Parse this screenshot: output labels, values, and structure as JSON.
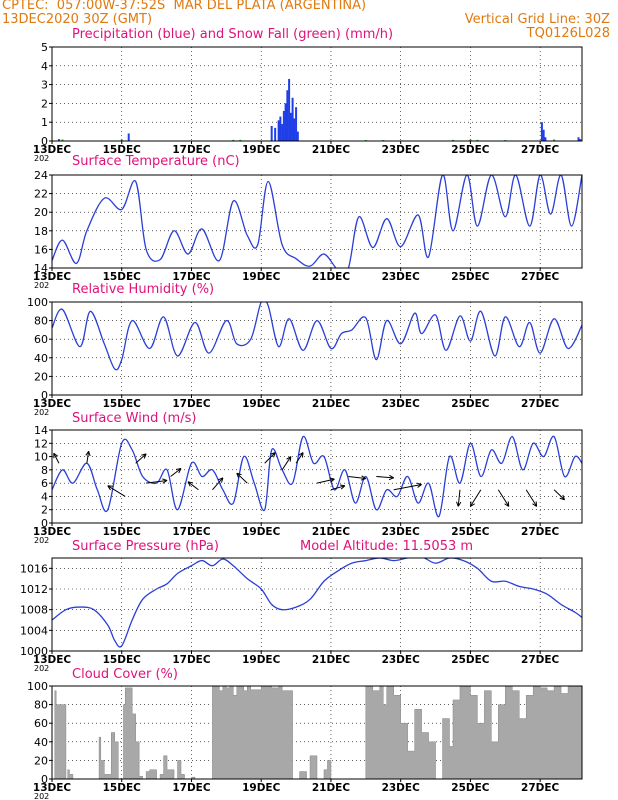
{
  "header": {
    "line1_left": "CPTEC:",
    "location": "057:00W-37:52S",
    "station": "MAR DEL PLATA (ARGENTINA)",
    "date": "13DEC2020 30Z (GMT)",
    "grid_line": "Vertical Grid Line: 30Z",
    "code": "TQ0126L028",
    "model_altitude": "Model Altitude: 11.5053 m",
    "year_stub": "202"
  },
  "colors": {
    "header": "#e07a10",
    "title": "#e0127a",
    "line": "#2a3fd8",
    "precip": "#1f3ee8",
    "snow": "#18b018",
    "cloud": "#a8a8a8"
  },
  "x_ticks": [
    "13DEC",
    "15DEC",
    "17DEC",
    "19DEC",
    "21DEC",
    "23DEC",
    "25DEC",
    "27DEC"
  ],
  "chart_data": [
    {
      "id": "precip",
      "type": "bar",
      "title": "Precipitation (blue) and Snow Fall (green) (mm/h)",
      "ylim": [
        0,
        5
      ],
      "yticks": [
        0,
        1,
        2,
        3,
        4,
        5
      ],
      "series": [
        {
          "name": "Precipitation",
          "color": "#1f3ee8",
          "x": [
            0.2,
            2.2,
            6.3,
            6.4,
            6.5,
            6.55,
            6.6,
            6.65,
            6.7,
            6.75,
            6.8,
            6.85,
            6.9,
            6.95,
            7.0,
            7.05,
            14.05,
            14.1,
            14.15,
            15.1,
            15.15
          ],
          "values": [
            0.1,
            0.4,
            0.8,
            0.7,
            1.1,
            1.3,
            0.9,
            1.6,
            2.0,
            2.7,
            3.3,
            1.5,
            2.3,
            1.2,
            1.8,
            0.5,
            1.0,
            0.6,
            0.2,
            0.2,
            0.1
          ]
        },
        {
          "name": "Snow Fall",
          "color": "#18b018",
          "x": [
            0.3,
            2.0,
            5.2,
            5.4,
            9.0,
            9.5,
            11.5,
            12.0,
            12.2,
            13.0,
            14.4
          ],
          "values": [
            0.08,
            0.08,
            0.06,
            0.06,
            0.05,
            0.05,
            0.06,
            0.08,
            0.06,
            0.05,
            0.08
          ]
        }
      ]
    },
    {
      "id": "temp",
      "type": "line",
      "title": "Surface Temperature (nC)",
      "ylim": [
        14,
        24
      ],
      "yticks": [
        14,
        16,
        18,
        20,
        22,
        24
      ],
      "x": [
        0,
        0.3,
        0.7,
        1.0,
        1.5,
        2.0,
        2.4,
        2.7,
        3.1,
        3.5,
        3.9,
        4.3,
        4.8,
        5.2,
        5.6,
        5.9,
        6.2,
        6.6,
        7.0,
        7.4,
        7.8,
        8.2,
        8.5,
        8.8,
        9.2,
        9.6,
        10.0,
        10.5,
        10.8,
        11.2,
        11.5,
        11.9,
        12.2,
        12.6,
        13.0,
        13.3,
        13.7,
        14.0,
        14.3,
        14.6,
        14.9,
        15.2
      ],
      "values": [
        14.8,
        17.0,
        14.5,
        18.0,
        21.5,
        20.3,
        23.3,
        16.0,
        14.9,
        18.0,
        15.5,
        18.2,
        14.8,
        21.2,
        17.5,
        16.5,
        23.3,
        16.5,
        15.0,
        14.2,
        15.5,
        13.8,
        14.0,
        19.5,
        16.2,
        19.3,
        16.3,
        19.7,
        15.2,
        24.0,
        18.0,
        24.0,
        18.5,
        24.0,
        19.5,
        24.0,
        18.5,
        24.0,
        19.8,
        24.0,
        18.5,
        24.0
      ],
      "clip": true
    },
    {
      "id": "rh",
      "type": "line",
      "title": "Relative Humidity (%)",
      "ylim": [
        0,
        100
      ],
      "yticks": [
        0,
        20,
        40,
        60,
        80,
        100
      ],
      "x": [
        0,
        0.3,
        0.8,
        1.1,
        1.5,
        1.8,
        2.0,
        2.3,
        2.8,
        3.2,
        3.6,
        4.1,
        4.5,
        5.0,
        5.3,
        5.7,
        6.0,
        6.2,
        6.5,
        6.8,
        7.2,
        7.6,
        8.0,
        8.3,
        8.6,
        9.0,
        9.3,
        9.6,
        10.0,
        10.4,
        10.6,
        11.0,
        11.3,
        11.7,
        12.0,
        12.3,
        12.7,
        13.0,
        13.4,
        13.7,
        14.0,
        14.4,
        14.8,
        15.2
      ],
      "values": [
        72,
        92,
        52,
        90,
        55,
        28,
        38,
        80,
        50,
        84,
        42,
        78,
        45,
        80,
        55,
        60,
        100,
        96,
        52,
        82,
        48,
        80,
        50,
        66,
        70,
        83,
        38,
        80,
        55,
        88,
        66,
        86,
        48,
        85,
        58,
        90,
        42,
        84,
        52,
        78,
        45,
        82,
        50,
        75
      ],
      "clip": true
    },
    {
      "id": "wind",
      "type": "line",
      "title": "Surface Wind (m/s)",
      "ylim": [
        0,
        14
      ],
      "yticks": [
        0,
        2,
        4,
        6,
        8,
        10,
        12,
        14
      ],
      "x": [
        0,
        0.3,
        0.6,
        1.0,
        1.3,
        1.6,
        2.0,
        2.3,
        2.6,
        3.0,
        3.3,
        3.6,
        4.0,
        4.3,
        4.6,
        4.9,
        5.2,
        5.5,
        5.8,
        6.1,
        6.3,
        6.6,
        6.9,
        7.2,
        7.5,
        7.8,
        8.1,
        8.4,
        8.7,
        9.0,
        9.3,
        9.6,
        9.9,
        10.2,
        10.5,
        10.8,
        11.1,
        11.4,
        11.7,
        12.0,
        12.3,
        12.6,
        12.9,
        13.2,
        13.5,
        13.8,
        14.1,
        14.4,
        14.7,
        15.0,
        15.2
      ],
      "values": [
        5,
        8,
        6,
        9,
        5,
        2,
        12,
        11,
        7,
        6,
        8,
        2,
        9,
        7,
        8,
        5,
        3,
        10,
        6,
        2,
        11,
        8,
        6,
        13,
        9,
        10,
        5,
        8,
        3,
        7,
        2,
        5,
        4,
        7,
        3,
        6,
        1,
        10,
        6,
        12,
        7,
        11,
        9,
        13,
        8,
        12,
        10,
        13,
        7,
        10,
        9
      ],
      "arrows": [
        [
          0.2,
          9,
          -0.15,
          1.5
        ],
        [
          1.0,
          9,
          0.05,
          1.8
        ],
        [
          2.1,
          4,
          -0.5,
          1.6
        ],
        [
          2.4,
          9,
          0.3,
          1.4
        ],
        [
          2.7,
          6,
          0.6,
          0.4
        ],
        [
          3.4,
          7,
          0.3,
          1.2
        ],
        [
          4.2,
          5,
          -0.3,
          1.2
        ],
        [
          4.6,
          5,
          0.3,
          1.8
        ],
        [
          5.6,
          6,
          -0.3,
          1.5
        ],
        [
          6.1,
          9,
          0.3,
          1.6
        ],
        [
          6.6,
          8,
          0.25,
          2.0
        ],
        [
          7.0,
          9,
          0.2,
          1.6
        ],
        [
          7.6,
          6,
          0.5,
          0.6
        ],
        [
          8.0,
          5,
          0.4,
          0.6
        ],
        [
          8.5,
          7,
          0.5,
          -0.3
        ],
        [
          9.3,
          7,
          0.5,
          -0.2
        ],
        [
          9.8,
          5,
          0.8,
          0.8
        ],
        [
          11.7,
          5,
          -0.05,
          -2.5
        ],
        [
          12.3,
          5,
          -0.3,
          -2.5
        ],
        [
          12.8,
          5,
          0.3,
          -2.5
        ],
        [
          13.6,
          5,
          0.3,
          -2.5
        ],
        [
          14.4,
          5,
          0.3,
          -1.5
        ]
      ]
    },
    {
      "id": "pres",
      "type": "line",
      "title": "Surface Pressure (hPa)",
      "ylim": [
        1000,
        1018
      ],
      "yticks": [
        1000,
        1004,
        1008,
        1012,
        1016
      ],
      "x": [
        0,
        0.4,
        0.8,
        1.2,
        1.6,
        1.8,
        2.0,
        2.3,
        2.6,
        3.0,
        3.3,
        3.6,
        4.0,
        4.3,
        4.6,
        4.9,
        5.2,
        5.6,
        6.0,
        6.3,
        6.6,
        7.0,
        7.4,
        7.8,
        8.2,
        8.6,
        9.0,
        9.4,
        9.8,
        10.2,
        10.6,
        11.0,
        11.4,
        11.8,
        12.2,
        12.6,
        13.0,
        13.4,
        13.8,
        14.2,
        14.6,
        15.0,
        15.2
      ],
      "values": [
        1006,
        1008,
        1008.5,
        1008,
        1005,
        1002,
        1001,
        1006,
        1010,
        1012,
        1013,
        1015,
        1016.5,
        1017.5,
        1016.5,
        1017.8,
        1016.5,
        1014,
        1012,
        1009,
        1008,
        1008.5,
        1010,
        1013.5,
        1015.5,
        1017,
        1017.5,
        1018,
        1017.5,
        1018,
        1018.2,
        1017,
        1018,
        1017.5,
        1016,
        1013.5,
        1013.5,
        1012.5,
        1012,
        1011,
        1009,
        1007.5,
        1006.5
      ],
      "clip": true
    },
    {
      "id": "cloud",
      "type": "area",
      "title": "Cloud Cover (%)",
      "ylim": [
        0,
        100
      ],
      "yticks": [
        0,
        20,
        40,
        60,
        80,
        100
      ],
      "x": [
        0,
        0.08,
        0.12,
        0.4,
        0.45,
        0.5,
        0.6,
        1.3,
        1.35,
        1.4,
        1.5,
        1.7,
        1.8,
        1.9,
        2.0,
        2.05,
        2.1,
        2.3,
        2.4,
        2.5,
        2.6,
        2.7,
        2.8,
        3.0,
        3.1,
        3.2,
        3.3,
        3.5,
        3.6,
        3.7,
        3.8,
        4.0,
        4.1,
        4.3,
        4.6,
        4.8,
        4.9,
        5.0,
        5.1,
        5.2,
        5.3,
        5.5,
        5.6,
        5.7,
        6.0,
        6.3,
        6.5,
        6.6,
        6.9,
        7.0,
        7.1,
        7.3,
        7.4,
        7.6,
        7.8,
        7.9,
        8.0,
        8.2,
        8.4,
        8.6,
        8.8,
        9.0,
        9.2,
        9.4,
        9.5,
        9.6,
        9.8,
        10.0,
        10.2,
        10.4,
        10.6,
        10.8,
        11.0,
        11.2,
        11.4,
        11.5,
        11.7,
        12.0,
        12.2,
        12.4,
        12.6,
        12.8,
        13.0,
        13.2,
        13.4,
        13.6,
        13.8,
        14.0,
        14.2,
        14.4,
        14.6,
        14.8,
        15.0,
        15.2
      ],
      "values": [
        0,
        95,
        80,
        0,
        10,
        5,
        0,
        0,
        45,
        20,
        5,
        50,
        40,
        0,
        0,
        80,
        98,
        70,
        40,
        3,
        0,
        8,
        10,
        0,
        5,
        25,
        10,
        0,
        20,
        5,
        0,
        2,
        0,
        0,
        100,
        95,
        100,
        98,
        100,
        90,
        100,
        95,
        100,
        96,
        100,
        98,
        100,
        95,
        0,
        0,
        8,
        0,
        25,
        0,
        10,
        20,
        0,
        0,
        0,
        0,
        0,
        100,
        95,
        100,
        80,
        100,
        90,
        60,
        30,
        75,
        50,
        40,
        0,
        65,
        35,
        85,
        100,
        90,
        60,
        95,
        40,
        80,
        100,
        95,
        65,
        90,
        100,
        98,
        95,
        100,
        92,
        100,
        100,
        95
      ],
      "step": true
    }
  ]
}
